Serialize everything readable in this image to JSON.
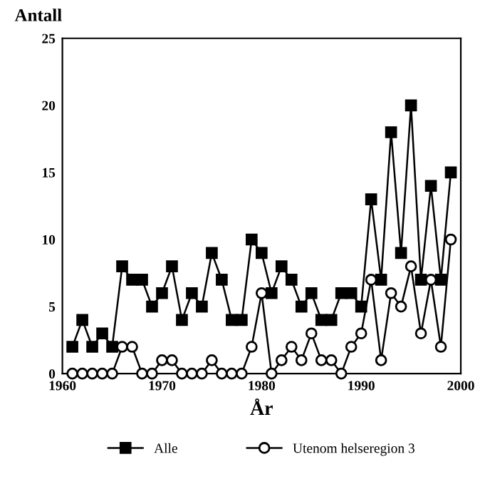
{
  "chart_data": {
    "type": "line",
    "xlabel": "År",
    "ylabel": "Antall",
    "x": [
      1961,
      1962,
      1963,
      1964,
      1965,
      1966,
      1967,
      1968,
      1969,
      1970,
      1971,
      1972,
      1973,
      1974,
      1975,
      1976,
      1977,
      1978,
      1979,
      1980,
      1981,
      1982,
      1983,
      1984,
      1985,
      1986,
      1987,
      1988,
      1989,
      1990,
      1991,
      1992,
      1993,
      1994,
      1995,
      1996,
      1997,
      1998,
      1999
    ],
    "series": [
      {
        "name": "Alle",
        "color": "#000000",
        "marker": "square",
        "values": [
          2,
          4,
          2,
          3,
          2,
          8,
          7,
          7,
          5,
          6,
          8,
          4,
          6,
          5,
          9,
          7,
          4,
          4,
          10,
          9,
          6,
          8,
          7,
          5,
          6,
          4,
          4,
          6,
          6,
          5,
          13,
          7,
          18,
          9,
          20,
          7,
          14,
          7,
          15
        ]
      },
      {
        "name": "Utenom helseregion 3",
        "color": "#000000",
        "marker": "circle",
        "values": [
          0,
          0,
          0,
          0,
          0,
          2,
          2,
          0,
          0,
          1,
          1,
          0,
          0,
          0,
          1,
          0,
          0,
          0,
          2,
          6,
          0,
          1,
          2,
          1,
          3,
          1,
          1,
          0,
          2,
          3,
          7,
          1,
          6,
          5,
          8,
          3,
          7,
          2,
          10
        ]
      }
    ],
    "xlim": [
      1960,
      2000
    ],
    "ylim": [
      0,
      25
    ],
    "xticks": [
      1960,
      1970,
      1980,
      1990,
      2000
    ],
    "yticks": [
      0,
      5,
      10,
      15,
      20,
      25
    ],
    "grid": false,
    "legend": "bottom",
    "line_style": "solid"
  }
}
